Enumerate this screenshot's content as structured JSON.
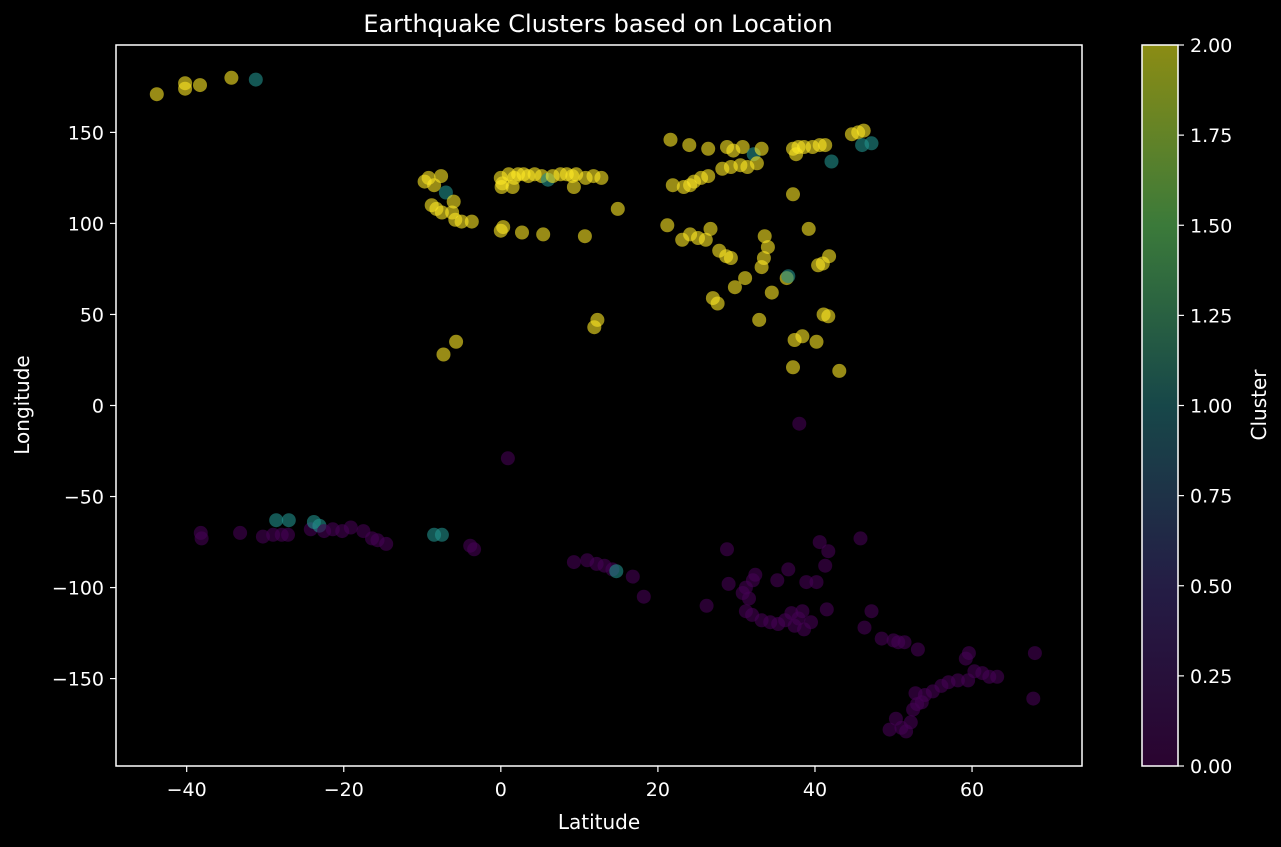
{
  "chart_data": {
    "type": "scatter",
    "title": "Earthquake Clusters based on Location",
    "xlabel": "Latitude",
    "ylabel": "Longitude",
    "xlim": [
      -49,
      74
    ],
    "ylim": [
      -198,
      198
    ],
    "xticks": [
      -40,
      -20,
      0,
      20,
      40,
      60
    ],
    "yticks": [
      -150,
      -100,
      -50,
      0,
      50,
      100,
      150
    ],
    "grid": false,
    "colorbar": {
      "label": "Cluster",
      "range": [
        0,
        2
      ],
      "ticks": [
        "0.00",
        "0.25",
        "0.50",
        "0.75",
        "1.00",
        "1.25",
        "1.50",
        "1.75",
        "2.00"
      ]
    },
    "colors": {
      "cluster_0": "#440154",
      "cluster_1": "#21918c",
      "cluster_2": "#fde725",
      "background": "#000000",
      "axes": "#ffffff"
    },
    "points": [
      {
        "x": -43.8,
        "y": 171,
        "c": 2
      },
      {
        "x": -40.2,
        "y": 177,
        "c": 2
      },
      {
        "x": -40.2,
        "y": 174,
        "c": 2
      },
      {
        "x": -38.3,
        "y": 176,
        "c": 2
      },
      {
        "x": -34.3,
        "y": 180,
        "c": 2
      },
      {
        "x": -31.2,
        "y": 179,
        "c": 1
      },
      {
        "x": -9.7,
        "y": 123,
        "c": 2
      },
      {
        "x": -9.2,
        "y": 125,
        "c": 2
      },
      {
        "x": -8.5,
        "y": 121,
        "c": 2
      },
      {
        "x": -7.6,
        "y": 126,
        "c": 2
      },
      {
        "x": -8.8,
        "y": 110,
        "c": 2
      },
      {
        "x": -8.2,
        "y": 108,
        "c": 2
      },
      {
        "x": -7.5,
        "y": 106,
        "c": 2
      },
      {
        "x": -7.0,
        "y": 117,
        "c": 1
      },
      {
        "x": -6.0,
        "y": 112,
        "c": 2
      },
      {
        "x": -6.2,
        "y": 106,
        "c": 2
      },
      {
        "x": -5.8,
        "y": 102,
        "c": 2
      },
      {
        "x": -5.0,
        "y": 101,
        "c": 2
      },
      {
        "x": -3.7,
        "y": 101,
        "c": 2
      },
      {
        "x": -7.3,
        "y": 28,
        "c": 2
      },
      {
        "x": -5.7,
        "y": 35,
        "c": 2
      },
      {
        "x": 0.0,
        "y": 125,
        "c": 2
      },
      {
        "x": 0.2,
        "y": 122,
        "c": 2
      },
      {
        "x": 0.1,
        "y": 120,
        "c": 2
      },
      {
        "x": 1.0,
        "y": 127,
        "c": 2
      },
      {
        "x": 1.7,
        "y": 125,
        "c": 2
      },
      {
        "x": 1.5,
        "y": 120,
        "c": 2
      },
      {
        "x": 2.2,
        "y": 127,
        "c": 2
      },
      {
        "x": 2.9,
        "y": 127,
        "c": 2
      },
      {
        "x": 3.5,
        "y": 126,
        "c": 2
      },
      {
        "x": 4.3,
        "y": 127,
        "c": 2
      },
      {
        "x": 5.2,
        "y": 126,
        "c": 2
      },
      {
        "x": 6.0,
        "y": 124,
        "c": 1
      },
      {
        "x": 6.6,
        "y": 126,
        "c": 2
      },
      {
        "x": 7.6,
        "y": 127,
        "c": 2
      },
      {
        "x": 8.4,
        "y": 127,
        "c": 2
      },
      {
        "x": 9.1,
        "y": 126,
        "c": 2
      },
      {
        "x": 9.6,
        "y": 127,
        "c": 2
      },
      {
        "x": 9.3,
        "y": 120,
        "c": 2
      },
      {
        "x": 10.8,
        "y": 125,
        "c": 2
      },
      {
        "x": 11.8,
        "y": 126,
        "c": 2
      },
      {
        "x": 12.8,
        "y": 125,
        "c": 2
      },
      {
        "x": 14.9,
        "y": 108,
        "c": 2
      },
      {
        "x": 0.0,
        "y": 96,
        "c": 2
      },
      {
        "x": 0.3,
        "y": 98,
        "c": 2
      },
      {
        "x": 2.7,
        "y": 95,
        "c": 2
      },
      {
        "x": 5.4,
        "y": 94,
        "c": 2
      },
      {
        "x": 10.7,
        "y": 93,
        "c": 2
      },
      {
        "x": 11.9,
        "y": 43,
        "c": 2
      },
      {
        "x": 12.3,
        "y": 47,
        "c": 2
      },
      {
        "x": 21.6,
        "y": 146,
        "c": 2
      },
      {
        "x": 24.0,
        "y": 143,
        "c": 2
      },
      {
        "x": 26.4,
        "y": 141,
        "c": 2
      },
      {
        "x": 28.8,
        "y": 142,
        "c": 2
      },
      {
        "x": 29.6,
        "y": 140,
        "c": 2
      },
      {
        "x": 30.8,
        "y": 142,
        "c": 2
      },
      {
        "x": 32.2,
        "y": 138,
        "c": 1
      },
      {
        "x": 33.2,
        "y": 141,
        "c": 2
      },
      {
        "x": 21.9,
        "y": 121,
        "c": 2
      },
      {
        "x": 23.3,
        "y": 120,
        "c": 2
      },
      {
        "x": 24.1,
        "y": 121,
        "c": 2
      },
      {
        "x": 24.6,
        "y": 123,
        "c": 2
      },
      {
        "x": 25.5,
        "y": 125,
        "c": 2
      },
      {
        "x": 26.4,
        "y": 126,
        "c": 2
      },
      {
        "x": 28.2,
        "y": 130,
        "c": 2
      },
      {
        "x": 29.3,
        "y": 131,
        "c": 2
      },
      {
        "x": 30.5,
        "y": 132,
        "c": 2
      },
      {
        "x": 31.4,
        "y": 131,
        "c": 2
      },
      {
        "x": 32.6,
        "y": 133,
        "c": 2
      },
      {
        "x": 37.2,
        "y": 141,
        "c": 2
      },
      {
        "x": 37.9,
        "y": 142,
        "c": 2
      },
      {
        "x": 38.6,
        "y": 142,
        "c": 2
      },
      {
        "x": 39.7,
        "y": 142,
        "c": 2
      },
      {
        "x": 40.6,
        "y": 143,
        "c": 2
      },
      {
        "x": 41.3,
        "y": 143,
        "c": 2
      },
      {
        "x": 37.6,
        "y": 138,
        "c": 2
      },
      {
        "x": 42.1,
        "y": 134,
        "c": 1
      },
      {
        "x": 44.7,
        "y": 149,
        "c": 2
      },
      {
        "x": 45.5,
        "y": 150,
        "c": 2
      },
      {
        "x": 46.2,
        "y": 151,
        "c": 2
      },
      {
        "x": 46.0,
        "y": 143,
        "c": 1
      },
      {
        "x": 47.2,
        "y": 144,
        "c": 1
      },
      {
        "x": 37.2,
        "y": 116,
        "c": 2
      },
      {
        "x": 21.2,
        "y": 99,
        "c": 2
      },
      {
        "x": 23.1,
        "y": 91,
        "c": 2
      },
      {
        "x": 24.1,
        "y": 94,
        "c": 2
      },
      {
        "x": 25.1,
        "y": 92,
        "c": 2
      },
      {
        "x": 26.1,
        "y": 91,
        "c": 2
      },
      {
        "x": 26.7,
        "y": 97,
        "c": 2
      },
      {
        "x": 27.8,
        "y": 85,
        "c": 2
      },
      {
        "x": 28.7,
        "y": 82,
        "c": 2
      },
      {
        "x": 29.3,
        "y": 81,
        "c": 2
      },
      {
        "x": 29.8,
        "y": 65,
        "c": 2
      },
      {
        "x": 27.0,
        "y": 59,
        "c": 2
      },
      {
        "x": 27.6,
        "y": 56,
        "c": 2
      },
      {
        "x": 31.1,
        "y": 70,
        "c": 2
      },
      {
        "x": 32.9,
        "y": 47,
        "c": 2
      },
      {
        "x": 33.6,
        "y": 93,
        "c": 2
      },
      {
        "x": 34.0,
        "y": 87,
        "c": 2
      },
      {
        "x": 33.5,
        "y": 81,
        "c": 2
      },
      {
        "x": 33.2,
        "y": 76,
        "c": 2
      },
      {
        "x": 34.5,
        "y": 62,
        "c": 2
      },
      {
        "x": 36.4,
        "y": 70,
        "c": 2
      },
      {
        "x": 36.6,
        "y": 71,
        "c": 1
      },
      {
        "x": 39.2,
        "y": 97,
        "c": 2
      },
      {
        "x": 40.4,
        "y": 77,
        "c": 2
      },
      {
        "x": 41.0,
        "y": 78,
        "c": 2
      },
      {
        "x": 41.8,
        "y": 82,
        "c": 2
      },
      {
        "x": 41.1,
        "y": 50,
        "c": 2
      },
      {
        "x": 41.7,
        "y": 49,
        "c": 2
      },
      {
        "x": 37.4,
        "y": 36,
        "c": 2
      },
      {
        "x": 38.4,
        "y": 38,
        "c": 2
      },
      {
        "x": 40.2,
        "y": 35,
        "c": 2
      },
      {
        "x": 37.2,
        "y": 21,
        "c": 2
      },
      {
        "x": 43.1,
        "y": 19,
        "c": 2
      },
      {
        "x": 38.0,
        "y": -10,
        "c": 0
      },
      {
        "x": 0.9,
        "y": -29,
        "c": 0
      },
      {
        "x": -38.2,
        "y": -70,
        "c": 0
      },
      {
        "x": -38.1,
        "y": -73,
        "c": 0
      },
      {
        "x": -33.2,
        "y": -70,
        "c": 0
      },
      {
        "x": -30.3,
        "y": -72,
        "c": 0
      },
      {
        "x": -29.0,
        "y": -71,
        "c": 0
      },
      {
        "x": -28.6,
        "y": -63,
        "c": 1
      },
      {
        "x": -27.9,
        "y": -71,
        "c": 0
      },
      {
        "x": -27.1,
        "y": -71,
        "c": 0
      },
      {
        "x": -27.0,
        "y": -63,
        "c": 1
      },
      {
        "x": -24.2,
        "y": -68,
        "c": 0
      },
      {
        "x": -23.8,
        "y": -64,
        "c": 1
      },
      {
        "x": -23.1,
        "y": -66,
        "c": 1
      },
      {
        "x": -22.5,
        "y": -69,
        "c": 0
      },
      {
        "x": -21.4,
        "y": -68,
        "c": 0
      },
      {
        "x": -20.2,
        "y": -69,
        "c": 0
      },
      {
        "x": -19.1,
        "y": -67,
        "c": 0
      },
      {
        "x": -17.5,
        "y": -69,
        "c": 0
      },
      {
        "x": -16.4,
        "y": -73,
        "c": 0
      },
      {
        "x": -15.7,
        "y": -74,
        "c": 0
      },
      {
        "x": -14.6,
        "y": -76,
        "c": 0
      },
      {
        "x": -8.5,
        "y": -71,
        "c": 1
      },
      {
        "x": -7.5,
        "y": -71,
        "c": 1
      },
      {
        "x": -3.9,
        "y": -77,
        "c": 0
      },
      {
        "x": -3.4,
        "y": -79,
        "c": 0
      },
      {
        "x": 9.3,
        "y": -86,
        "c": 0
      },
      {
        "x": 11.0,
        "y": -85,
        "c": 0
      },
      {
        "x": 12.2,
        "y": -87,
        "c": 0
      },
      {
        "x": 13.2,
        "y": -88,
        "c": 0
      },
      {
        "x": 14.2,
        "y": -90,
        "c": 0
      },
      {
        "x": 14.7,
        "y": -91,
        "c": 1
      },
      {
        "x": 16.8,
        "y": -94,
        "c": 0
      },
      {
        "x": 18.2,
        "y": -105,
        "c": 0
      },
      {
        "x": 26.2,
        "y": -110,
        "c": 0
      },
      {
        "x": 28.8,
        "y": -79,
        "c": 0
      },
      {
        "x": 29.0,
        "y": -98,
        "c": 0
      },
      {
        "x": 30.8,
        "y": -103,
        "c": 0
      },
      {
        "x": 31.2,
        "y": -100,
        "c": 0
      },
      {
        "x": 31.6,
        "y": -106,
        "c": 0
      },
      {
        "x": 32.1,
        "y": -96,
        "c": 0
      },
      {
        "x": 32.4,
        "y": -93,
        "c": 0
      },
      {
        "x": 31.2,
        "y": -113,
        "c": 0
      },
      {
        "x": 32.0,
        "y": -115,
        "c": 0
      },
      {
        "x": 33.2,
        "y": -118,
        "c": 0
      },
      {
        "x": 34.3,
        "y": -119,
        "c": 0
      },
      {
        "x": 35.3,
        "y": -120,
        "c": 0
      },
      {
        "x": 36.2,
        "y": -118,
        "c": 0
      },
      {
        "x": 37.4,
        "y": -121,
        "c": 0
      },
      {
        "x": 37.9,
        "y": -117,
        "c": 0
      },
      {
        "x": 38.6,
        "y": -123,
        "c": 0
      },
      {
        "x": 39.5,
        "y": -119,
        "c": 0
      },
      {
        "x": 37.0,
        "y": -114,
        "c": 0
      },
      {
        "x": 38.4,
        "y": -113,
        "c": 0
      },
      {
        "x": 35.2,
        "y": -96,
        "c": 0
      },
      {
        "x": 36.6,
        "y": -90,
        "c": 0
      },
      {
        "x": 38.9,
        "y": -97,
        "c": 0
      },
      {
        "x": 40.2,
        "y": -97,
        "c": 0
      },
      {
        "x": 40.6,
        "y": -75,
        "c": 0
      },
      {
        "x": 41.7,
        "y": -80,
        "c": 0
      },
      {
        "x": 41.3,
        "y": -88,
        "c": 0
      },
      {
        "x": 41.5,
        "y": -112,
        "c": 0
      },
      {
        "x": 45.8,
        "y": -73,
        "c": 0
      },
      {
        "x": 46.3,
        "y": -122,
        "c": 0
      },
      {
        "x": 47.2,
        "y": -113,
        "c": 0
      },
      {
        "x": 48.5,
        "y": -128,
        "c": 0
      },
      {
        "x": 50.0,
        "y": -129,
        "c": 0
      },
      {
        "x": 50.6,
        "y": -130,
        "c": 0
      },
      {
        "x": 51.4,
        "y": -130,
        "c": 0
      },
      {
        "x": 53.1,
        "y": -134,
        "c": 0
      },
      {
        "x": 49.5,
        "y": -178,
        "c": 0
      },
      {
        "x": 50.3,
        "y": -172,
        "c": 0
      },
      {
        "x": 51.0,
        "y": -177,
        "c": 0
      },
      {
        "x": 51.6,
        "y": -179,
        "c": 0
      },
      {
        "x": 52.2,
        "y": -174,
        "c": 0
      },
      {
        "x": 52.5,
        "y": -167,
        "c": 0
      },
      {
        "x": 53.0,
        "y": -164,
        "c": 0
      },
      {
        "x": 53.6,
        "y": -163,
        "c": 0
      },
      {
        "x": 52.8,
        "y": -158,
        "c": 0
      },
      {
        "x": 54.0,
        "y": -159,
        "c": 0
      },
      {
        "x": 55.0,
        "y": -157,
        "c": 0
      },
      {
        "x": 56.1,
        "y": -154,
        "c": 0
      },
      {
        "x": 57.0,
        "y": -152,
        "c": 0
      },
      {
        "x": 58.2,
        "y": -151,
        "c": 0
      },
      {
        "x": 59.5,
        "y": -151,
        "c": 0
      },
      {
        "x": 59.2,
        "y": -139,
        "c": 0
      },
      {
        "x": 59.6,
        "y": -136,
        "c": 0
      },
      {
        "x": 60.3,
        "y": -146,
        "c": 0
      },
      {
        "x": 61.3,
        "y": -147,
        "c": 0
      },
      {
        "x": 62.2,
        "y": -149,
        "c": 0
      },
      {
        "x": 63.2,
        "y": -149,
        "c": 0
      },
      {
        "x": 68.0,
        "y": -136,
        "c": 0
      },
      {
        "x": 67.8,
        "y": -161,
        "c": 0
      }
    ]
  }
}
